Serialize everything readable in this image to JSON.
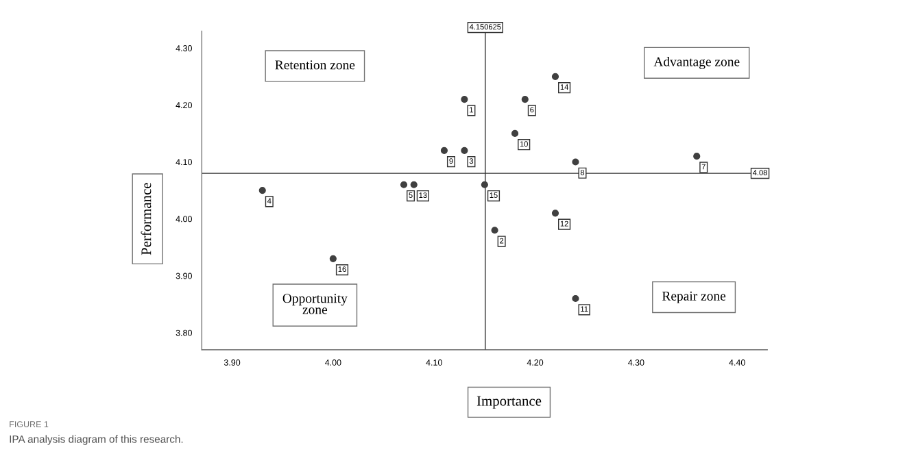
{
  "chart_data": {
    "type": "scatter",
    "xlabel": "Importance",
    "ylabel": "Performance",
    "x": [
      4.13,
      4.16,
      4.13,
      3.93,
      4.07,
      4.19,
      4.36,
      4.24,
      4.11,
      4.18,
      4.24,
      4.22,
      4.08,
      4.22,
      4.15,
      4.0
    ],
    "values": [
      4.21,
      3.98,
      4.12,
      4.05,
      4.06,
      4.21,
      4.11,
      4.1,
      4.12,
      4.15,
      3.86,
      4.01,
      4.06,
      4.25,
      4.06,
      3.93
    ],
    "color": "#404040",
    "marker": "circle",
    "grid": false,
    "legend": false,
    "xlim": [
      3.87,
      4.43
    ],
    "xticks": [
      {
        "value": 3.9,
        "label": "3.90"
      },
      {
        "value": 4.0,
        "label": "4.00"
      },
      {
        "value": 4.1,
        "label": "4.10"
      },
      {
        "value": 4.2,
        "label": "4.20"
      },
      {
        "value": 4.3,
        "label": "4.30"
      },
      {
        "value": 4.4,
        "label": "4.40"
      }
    ],
    "ylim": [
      3.77,
      4.33
    ],
    "yticks": [
      {
        "value": 3.8,
        "label": "3.80"
      },
      {
        "value": 3.9,
        "label": "3.90"
      },
      {
        "value": 4.0,
        "label": "4.00"
      },
      {
        "value": 4.1,
        "label": "4.10"
      },
      {
        "value": 4.2,
        "label": "4.20"
      },
      {
        "value": 4.3,
        "label": "4.30"
      }
    ],
    "ref_lines": [
      {
        "axis": "x",
        "value": 4.150625,
        "label": "4.150625"
      },
      {
        "axis": "y",
        "value": 4.08,
        "label": "4.08"
      }
    ],
    "annotations": [
      "Retention zone",
      "Advantage zone",
      "Opportunity\nzone",
      "Repair zone",
      "FIGURE 1",
      "IPA analysis diagram of this research.",
      {
        "text": "1",
        "x": 4.13,
        "y": 4.21
      },
      {
        "text": "2",
        "x": 4.16,
        "y": 3.98
      },
      {
        "text": "3",
        "x": 4.13,
        "y": 4.12
      },
      {
        "text": "4",
        "x": 3.93,
        "y": 4.05
      },
      {
        "text": "5",
        "x": 4.07,
        "y": 4.06
      },
      {
        "text": "6",
        "x": 4.19,
        "y": 4.21
      },
      {
        "text": "7",
        "x": 4.36,
        "y": 4.11
      },
      {
        "text": "8",
        "x": 4.24,
        "y": 4.1
      },
      {
        "text": "9",
        "x": 4.11,
        "y": 4.12
      },
      {
        "text": "10",
        "x": 4.18,
        "y": 4.15
      },
      {
        "text": "11",
        "x": 4.24,
        "y": 3.86
      },
      {
        "text": "12",
        "x": 4.22,
        "y": 4.01
      },
      {
        "text": "13",
        "x": 4.08,
        "y": 4.06
      },
      {
        "text": "14",
        "x": 4.22,
        "y": 4.25
      },
      {
        "text": "15",
        "x": 4.15,
        "y": 4.06
      },
      {
        "text": "16",
        "x": 4.0,
        "y": 3.93
      }
    ]
  }
}
